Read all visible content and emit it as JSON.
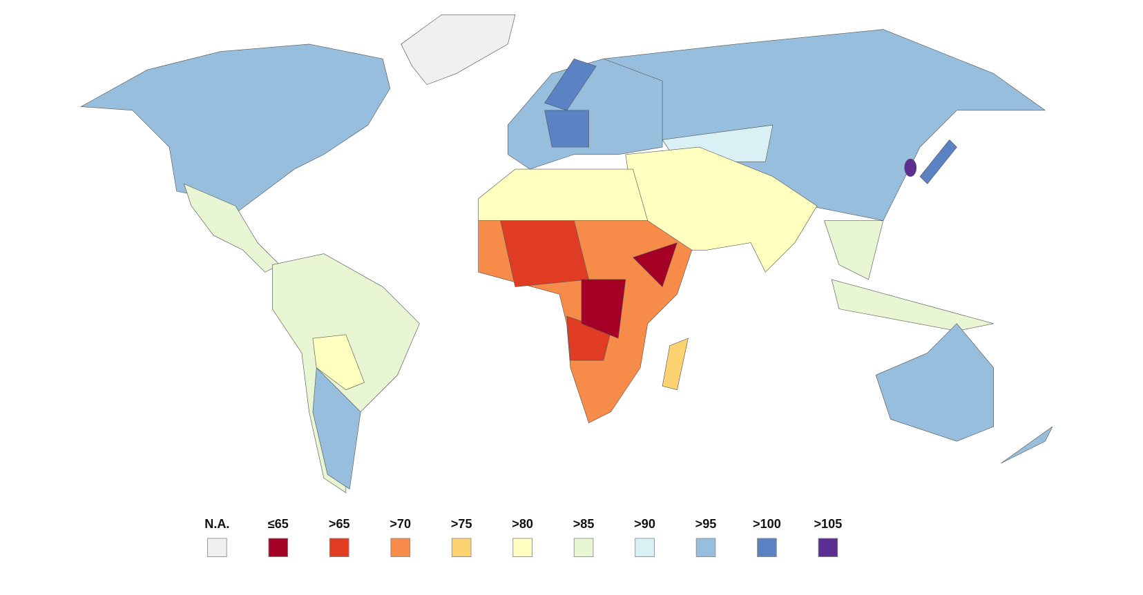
{
  "legend": {
    "items": [
      {
        "label": "N.A.",
        "color": "#f0f0f0"
      },
      {
        "label": "≤65",
        "color": "#a50026"
      },
      {
        "label": ">65",
        "color": "#e03b23"
      },
      {
        "label": ">70",
        "color": "#f78b4a"
      },
      {
        "label": ">75",
        "color": "#fdd371"
      },
      {
        "label": ">80",
        "color": "#ffffc0"
      },
      {
        "label": ">85",
        "color": "#e9f6d4"
      },
      {
        "label": ">90",
        "color": "#d9f1f5"
      },
      {
        "label": ">95",
        "color": "#97bfdd"
      },
      {
        "label": ">100",
        "color": "#5b82c3"
      },
      {
        "label": ">105",
        "color": "#5c2d93"
      }
    ]
  }
}
